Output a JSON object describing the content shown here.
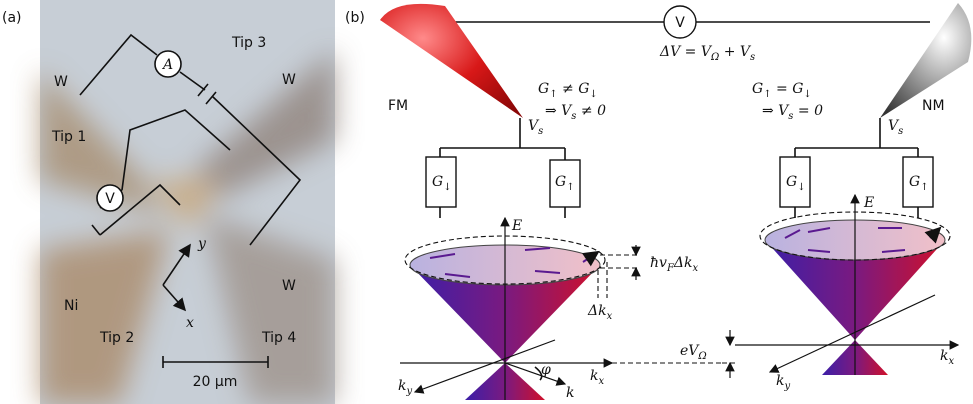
{
  "panel_a": {
    "label": "(a)",
    "labels": [
      "Tip 3",
      "W",
      "Tip 1",
      "W",
      "Ni",
      "Tip 2",
      "W",
      "Tip 4"
    ],
    "ammeter": "A",
    "voltmeter": "V",
    "axis_y": "y",
    "axis_x": "x",
    "scale_bar": "20 μm"
  },
  "panel_b": {
    "label": "(b)",
    "voltmeter": "V",
    "formula": [
      "ΔV = V",
      "Ω",
      " + V",
      "s"
    ],
    "fm": {
      "label": "FM",
      "condition": [
        "G",
        "↑",
        " ≠ G",
        "↓"
      ],
      "result": [
        "⇒ V",
        "s",
        " ≠ 0"
      ],
      "tip_voltage": [
        "V",
        "s"
      ],
      "resistor_down": [
        "G",
        "↓"
      ],
      "resistor_up": [
        "G",
        "↑"
      ],
      "energy_axis": "E",
      "kx": [
        "k",
        "x"
      ],
      "ky": [
        "k",
        "y"
      ],
      "angle": "φ",
      "k_vector": "k",
      "splitting": [
        "ħv",
        "F",
        "Δk",
        "x"
      ],
      "momentum_shift": [
        "Δk",
        "x"
      ]
    },
    "nm": {
      "label": "NM",
      "condition": [
        "G",
        "↑",
        " = G",
        "↓"
      ],
      "result": [
        "⇒ V",
        "s",
        " = 0"
      ],
      "tip_voltage": [
        "V",
        "s"
      ],
      "resistor_down": [
        "G",
        "↓"
      ],
      "resistor_up": [
        "G",
        "↑"
      ],
      "energy_axis": "E",
      "kx": [
        "k",
        "x"
      ],
      "ky": [
        "k",
        "y"
      ],
      "potential": [
        "eV",
        "Ω"
      ]
    }
  }
}
